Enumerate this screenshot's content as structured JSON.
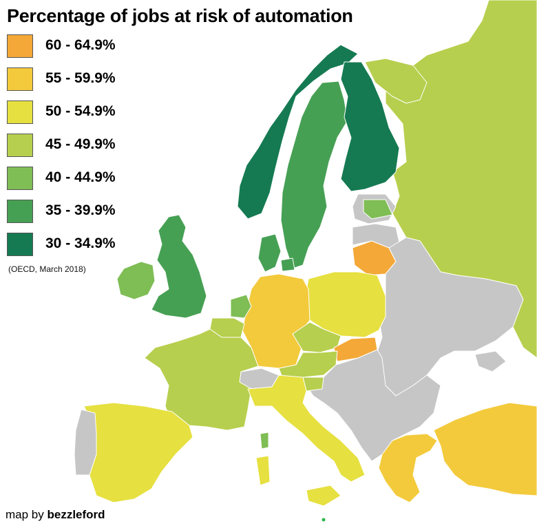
{
  "title": "Percentage of jobs at risk of automation",
  "legend": [
    {
      "label": "60 - 64.9%",
      "color": "#f3a838"
    },
    {
      "label": "55 - 59.9%",
      "color": "#f3ca3c"
    },
    {
      "label": "50 - 54.9%",
      "color": "#e6e040"
    },
    {
      "label": "45 - 49.9%",
      "color": "#b7cf4e"
    },
    {
      "label": "40 - 44.9%",
      "color": "#7fbd55"
    },
    {
      "label": "35 - 39.9%",
      "color": "#46a054"
    },
    {
      "label": "30 - 34.9%",
      "color": "#157a52"
    }
  ],
  "no_data_color": "#c6c6c6",
  "source": "(OECD, March 2018)",
  "credit": {
    "prefix": "map by ",
    "author": "bezzleford"
  }
}
